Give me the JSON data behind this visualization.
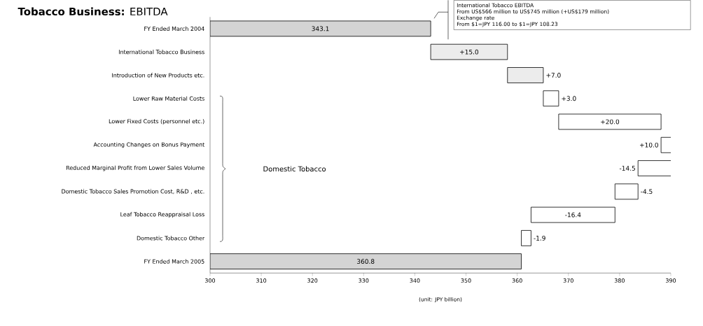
{
  "chart_data": {
    "type": "bar",
    "orientation": "horizontal",
    "title": "**Tobacco Business:** EBITDA",
    "xlabel": "(unit: JPY billion)",
    "categories": [
      "FY Ended March 2004",
      "International Tobacco Business",
      "Introduction of New Products etc.",
      "Lower Raw Material Costs",
      "Lower Fixed Costs (personnel etc.)",
      "Accounting Changes on Bonus Payment",
      "Reduced Marginal Profit from Lower Sales Volume",
      "Domestic Tobacco Sales Promotion Cost, R&D , etc.",
      "Leaf Tobacco Reappraisal Loss",
      "Domestic Tobacco Other",
      "FY Ended March 2005"
    ],
    "values": [
      343.1,
      15.0,
      7.0,
      3.0,
      20.0,
      10.0,
      -14.5,
      -4.5,
      -16.4,
      -1.9,
      360.8
    ],
    "base": [
      null,
      343.1,
      358.1,
      365.1,
      368.1,
      388.1,
      398.1,
      383.6,
      379.1,
      362.7,
      null
    ],
    "value_labels": [
      "343.1",
      "+15.0",
      "+7.0",
      "+3.0",
      "+20.0",
      "+10.0",
      "-14.5",
      "-4.5",
      "-16.4",
      "-1.9",
      "360.8"
    ],
    "colors": [
      "#d4d4d4",
      "#ececec",
      "#ececec",
      "#ffffff",
      "#ffffff",
      "#ffffff",
      "#ffffff",
      "#ffffff",
      "#ffffff",
      "#ffffff",
      "#d4d4d4"
    ],
    "xlim": [
      300,
      390
    ],
    "xticks": [
      300,
      310,
      320,
      330,
      340,
      350,
      360,
      370,
      380,
      390
    ],
    "annotations": [
      "Domestic Tobacco",
      "International Tobacco EBITDA",
      "From US$566 million to US$745 million (+US$179 million)",
      "Exchange rate",
      "From $1=JPY 116.00 to $1=JPY 108.23"
    ]
  }
}
